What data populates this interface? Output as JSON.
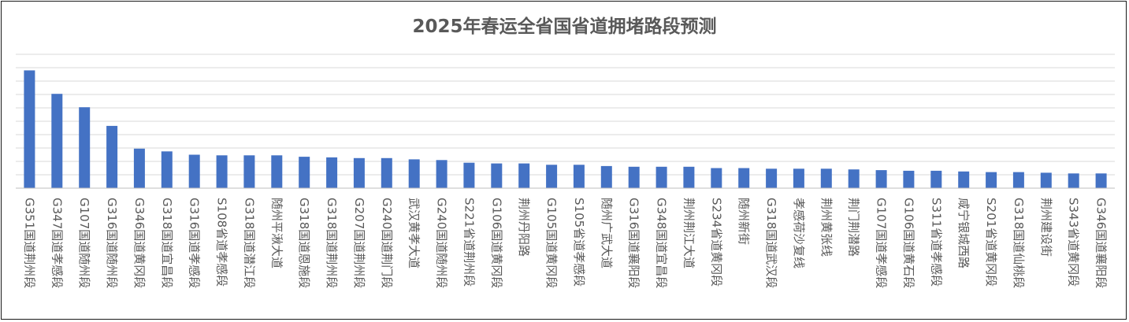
{
  "chart_data": {
    "type": "bar",
    "title": "2025年春运全省国省道拥堵路段预测",
    "xlabel": "",
    "ylabel": "",
    "ylim": [
      0,
      100
    ],
    "grid": true,
    "legend": "none",
    "color": "#4472c4",
    "categories": [
      "G351国道荆州段",
      "G347国道孝感段",
      "G107国道随州段",
      "G316国道随州段",
      "G346国道黄冈段",
      "G318国道宜昌段",
      "G316国道孝感段",
      "S108省道孝感段",
      "G318国道潜江段",
      "随州平湫大道",
      "G318国道恩施段",
      "G318国道荆州段",
      "G207国道荆州段",
      "G240国道荆门段",
      "武汉黄孝大道",
      "G240国道随州段",
      "S221省道荆州段",
      "G106国道黄冈段",
      "荆州丹阳路",
      "G105国道黄冈段",
      "S105省道孝感段",
      "随州广武大道",
      "G316国道襄阳段",
      "G348国道宜昌段",
      "荆州荆江大道",
      "S234省道黄冈段",
      "随州新街",
      "G318国道武汉段",
      "孝感荷沙复线",
      "荆州黄张线",
      "荆门荆潜路",
      "G107国道孝感段",
      "G106国道黄石段",
      "S311省道孝感段",
      "咸宁银城西路",
      "S201省道黄冈段",
      "G318国道仙桃段",
      "荆州建设街",
      "S343省道黄冈段",
      "G346国道襄阳段"
    ],
    "values": [
      88,
      70.5,
      60.5,
      46.5,
      29.5,
      27.5,
      25,
      24.5,
      24.5,
      24.5,
      23.5,
      23,
      22.5,
      22.5,
      21.5,
      21,
      19,
      18.5,
      18.5,
      17.5,
      17.5,
      16.5,
      16,
      16,
      16,
      15,
      15,
      14.5,
      14.5,
      14.5,
      14,
      13.5,
      13,
      13,
      12.5,
      12,
      12,
      11.5,
      11,
      11
    ]
  }
}
